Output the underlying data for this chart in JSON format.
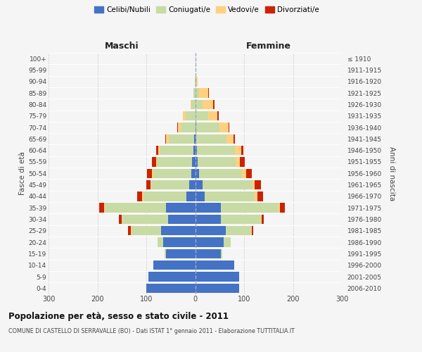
{
  "age_groups": [
    "0-4",
    "5-9",
    "10-14",
    "15-19",
    "20-24",
    "25-29",
    "30-34",
    "35-39",
    "40-44",
    "45-49",
    "50-54",
    "55-59",
    "60-64",
    "65-69",
    "70-74",
    "75-79",
    "80-84",
    "85-89",
    "90-94",
    "95-99",
    "100+"
  ],
  "birth_years": [
    "2006-2010",
    "2001-2005",
    "1996-2000",
    "1991-1995",
    "1986-1990",
    "1981-1985",
    "1976-1980",
    "1971-1975",
    "1966-1970",
    "1961-1965",
    "1956-1960",
    "1951-1955",
    "1946-1950",
    "1941-1945",
    "1936-1940",
    "1931-1935",
    "1926-1930",
    "1921-1925",
    "1916-1920",
    "1911-1915",
    "≤ 1910"
  ],
  "males": {
    "celibi": [
      100,
      95,
      85,
      60,
      65,
      70,
      55,
      60,
      18,
      12,
      8,
      6,
      4,
      2,
      0,
      0,
      0,
      0,
      0,
      0,
      0
    ],
    "coniugati": [
      0,
      0,
      0,
      3,
      12,
      60,
      95,
      125,
      88,
      78,
      78,
      72,
      68,
      52,
      30,
      20,
      8,
      4,
      1,
      0,
      0
    ],
    "vedovi": [
      0,
      0,
      0,
      0,
      0,
      2,
      1,
      2,
      2,
      2,
      2,
      2,
      3,
      5,
      5,
      5,
      2,
      0,
      0,
      0,
      0
    ],
    "divorziati": [
      0,
      0,
      0,
      0,
      0,
      5,
      5,
      10,
      10,
      8,
      10,
      8,
      5,
      2,
      2,
      0,
      0,
      0,
      0,
      0,
      0
    ]
  },
  "females": {
    "nubili": [
      90,
      90,
      80,
      52,
      58,
      62,
      52,
      52,
      20,
      15,
      8,
      5,
      4,
      2,
      2,
      0,
      0,
      0,
      0,
      0,
      0
    ],
    "coniugate": [
      0,
      0,
      0,
      4,
      14,
      52,
      82,
      118,
      102,
      102,
      88,
      78,
      78,
      62,
      48,
      26,
      15,
      8,
      2,
      0,
      0
    ],
    "vedove": [
      0,
      0,
      0,
      0,
      0,
      2,
      2,
      3,
      5,
      5,
      8,
      8,
      12,
      15,
      18,
      20,
      22,
      18,
      3,
      1,
      0
    ],
    "divorziate": [
      0,
      0,
      0,
      0,
      0,
      2,
      5,
      10,
      12,
      12,
      12,
      10,
      5,
      2,
      2,
      2,
      2,
      2,
      0,
      0,
      0
    ]
  },
  "colors": {
    "celibi": "#4472c4",
    "coniugati": "#c8dba4",
    "vedovi": "#ffd080",
    "divorziati": "#cc2200"
  },
  "xlim": 300,
  "title": "Popolazione per età, sesso e stato civile - 2011",
  "subtitle": "COMUNE DI CASTELLO DI SERRAVALLE (BO) - Dati ISTAT 1° gennaio 2011 - Elaborazione TUTTITALIA.IT",
  "ylabel_left": "Fasce di età",
  "ylabel_right": "Anni di nascita",
  "xlabel_left": "Maschi",
  "xlabel_right": "Femmine",
  "bg_color": "#f5f5f5",
  "grid_color": "#cccccc"
}
